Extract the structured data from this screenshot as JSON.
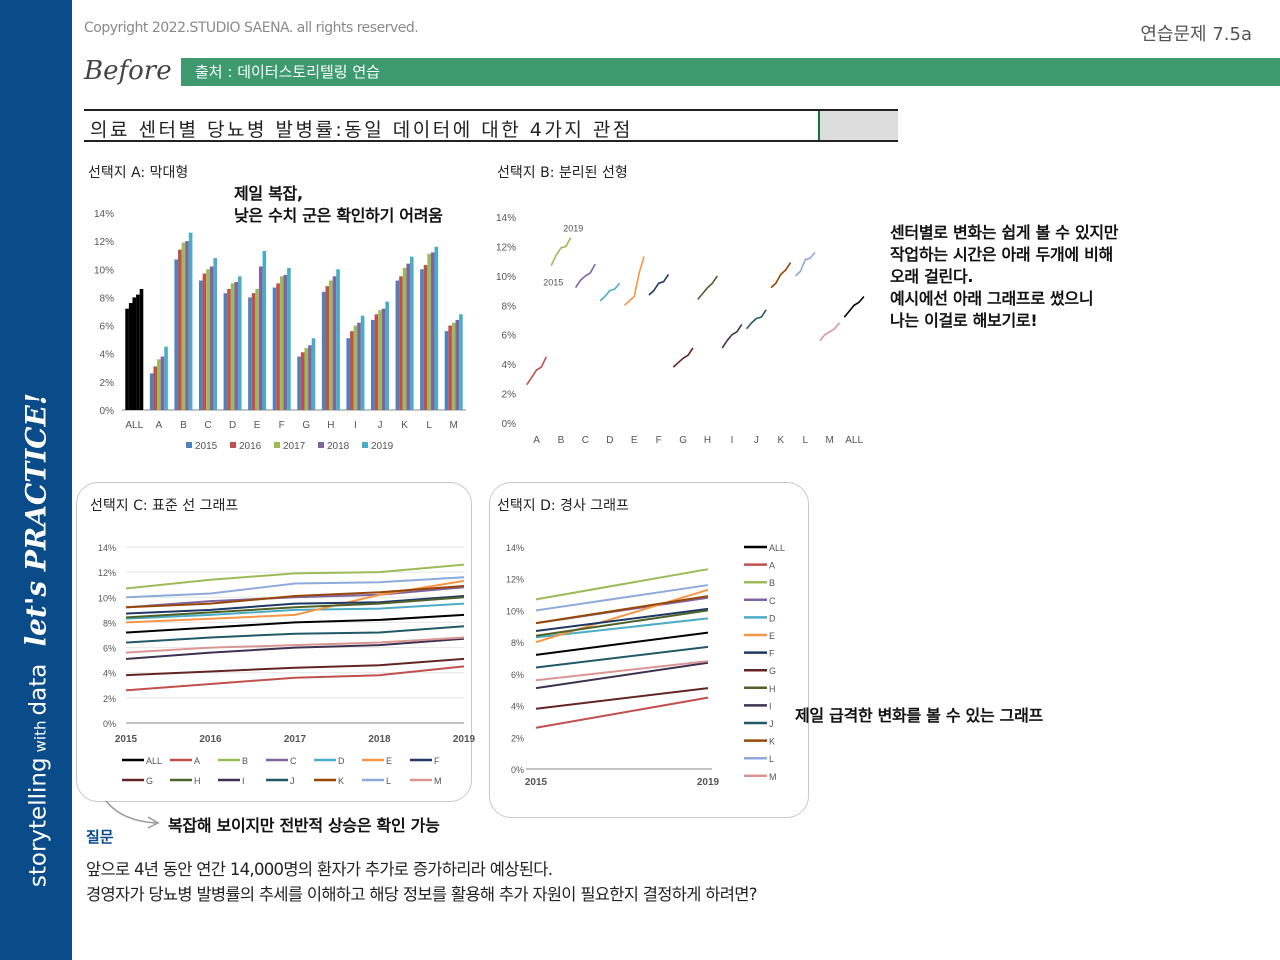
{
  "sidebar": {
    "storytelling": "storytelling",
    "with": "with",
    "data": "data",
    "lets_practice": "let's PRACTICE!"
  },
  "header": {
    "copyright": "Copyright 2022.STUDIO SAENA. all rights reserved.",
    "exercise": "연습문제 7.5a",
    "before": "Before",
    "source": "출처 : 데이터스토리텔링 연습"
  },
  "title": "의료 센터별 당뇨병 발병률:동일 데이터에 대한 4가지 관점",
  "panels": {
    "a": "선택지 A: 막대형",
    "b": "선택지 B: 분리된 선형",
    "c": "선택지 C: 표준 선 그래프",
    "d": "선택지 D: 경사 그래프"
  },
  "notes": {
    "a": [
      "제일 복잡,",
      "낮은 수치 군은 확인하기 어려움"
    ],
    "b": [
      "센터별로 변화는 쉽게 볼 수 있지만",
      "작업하는 시간은 아래 두개에 비해",
      "오래 걸린다.",
      "예시에선 아래 그래프로 썼으니",
      "나는 이걸로 해보기로!"
    ],
    "c": "복잡해 보이지만 전반적 상승은 확인 가능",
    "d": "제일 급격한 변화를 볼 수 있는 그래프"
  },
  "question": {
    "label": "질문",
    "lines": [
      "앞으로 4년 동안 연간 14,000명의 환자가 추가로 증가하리라 예상된다.",
      "경영자가 당뇨병 발병률의 추세를 이해하고 해당 정보를 활용해 추가 자원이 필요한지 결정하게 하려면?"
    ]
  },
  "colors": {
    "sidebar": "#0a4c8a",
    "source_bar": "#3e9b70"
  },
  "chart_data": [
    {
      "type": "bar",
      "title": "선택지 A: 막대형",
      "categories": [
        "ALL",
        "A",
        "B",
        "C",
        "D",
        "E",
        "F",
        "G",
        "H",
        "I",
        "J",
        "K",
        "L",
        "M"
      ],
      "series_names": [
        "2015",
        "2016",
        "2017",
        "2018",
        "2019"
      ],
      "ylim": [
        0,
        14
      ],
      "yticks": [
        "0%",
        "2%",
        "4%",
        "6%",
        "8%",
        "10%",
        "12%",
        "14%"
      ]
    },
    {
      "type": "line",
      "title": "선택지 B: 분리된 선형",
      "categories": [
        "A",
        "B",
        "C",
        "D",
        "E",
        "F",
        "G",
        "H",
        "I",
        "J",
        "K",
        "L",
        "M",
        "ALL"
      ],
      "ylim": [
        0,
        14
      ],
      "yticks": [
        "0%",
        "2%",
        "4%",
        "6%",
        "8%",
        "10%",
        "12%",
        "14%"
      ],
      "annotations": [
        "2015",
        "2019"
      ]
    },
    {
      "type": "line",
      "title": "선택지 C: 표준 선 그래프",
      "x": [
        "2015",
        "2016",
        "2017",
        "2018",
        "2019"
      ],
      "ylim": [
        0,
        14
      ],
      "yticks": [
        "0%",
        "2%",
        "4%",
        "6%",
        "8%",
        "10%",
        "12%",
        "14%"
      ]
    },
    {
      "type": "line",
      "title": "선택지 D: 경사 그래프",
      "x": [
        "2015",
        "2019"
      ],
      "ylim": [
        0,
        14
      ],
      "yticks": [
        "0%",
        "2%",
        "4%",
        "6%",
        "8%",
        "10%",
        "12%",
        "14%"
      ]
    }
  ],
  "series": [
    {
      "name": "ALL",
      "color": "#000000",
      "values": [
        7.2,
        7.6,
        8.0,
        8.2,
        8.6
      ]
    },
    {
      "name": "A",
      "color": "#c0504d",
      "values": [
        2.6,
        3.1,
        3.6,
        3.8,
        4.5
      ]
    },
    {
      "name": "B",
      "color": "#9bbb59",
      "values": [
        10.7,
        11.4,
        11.9,
        12.0,
        12.6
      ]
    },
    {
      "name": "C",
      "color": "#8064a2",
      "values": [
        9.2,
        9.7,
        10.0,
        10.2,
        10.8
      ]
    },
    {
      "name": "D",
      "color": "#4bacc6",
      "values": [
        8.3,
        8.6,
        9.0,
        9.1,
        9.5
      ]
    },
    {
      "name": "E",
      "color": "#f79646",
      "values": [
        8.0,
        8.3,
        8.6,
        10.2,
        11.3
      ]
    },
    {
      "name": "F",
      "color": "#1f3864",
      "values": [
        8.7,
        9.0,
        9.5,
        9.6,
        10.1
      ]
    },
    {
      "name": "G",
      "color": "#632523",
      "values": [
        3.8,
        4.1,
        4.4,
        4.6,
        5.1
      ]
    },
    {
      "name": "H",
      "color": "#4f6228",
      "values": [
        8.4,
        8.8,
        9.2,
        9.5,
        10.0
      ]
    },
    {
      "name": "I",
      "color": "#3f3151",
      "values": [
        5.1,
        5.6,
        6.0,
        6.2,
        6.7
      ]
    },
    {
      "name": "J",
      "color": "#215968",
      "values": [
        6.4,
        6.8,
        7.1,
        7.2,
        7.7
      ]
    },
    {
      "name": "K",
      "color": "#974806",
      "values": [
        9.2,
        9.5,
        10.1,
        10.4,
        10.9
      ]
    },
    {
      "name": "L",
      "color": "#8eaadb",
      "values": [
        10.0,
        10.3,
        11.1,
        11.2,
        11.6
      ]
    },
    {
      "name": "M",
      "color": "#d99694",
      "values": [
        5.6,
        6.0,
        6.2,
        6.4,
        6.8
      ]
    }
  ]
}
